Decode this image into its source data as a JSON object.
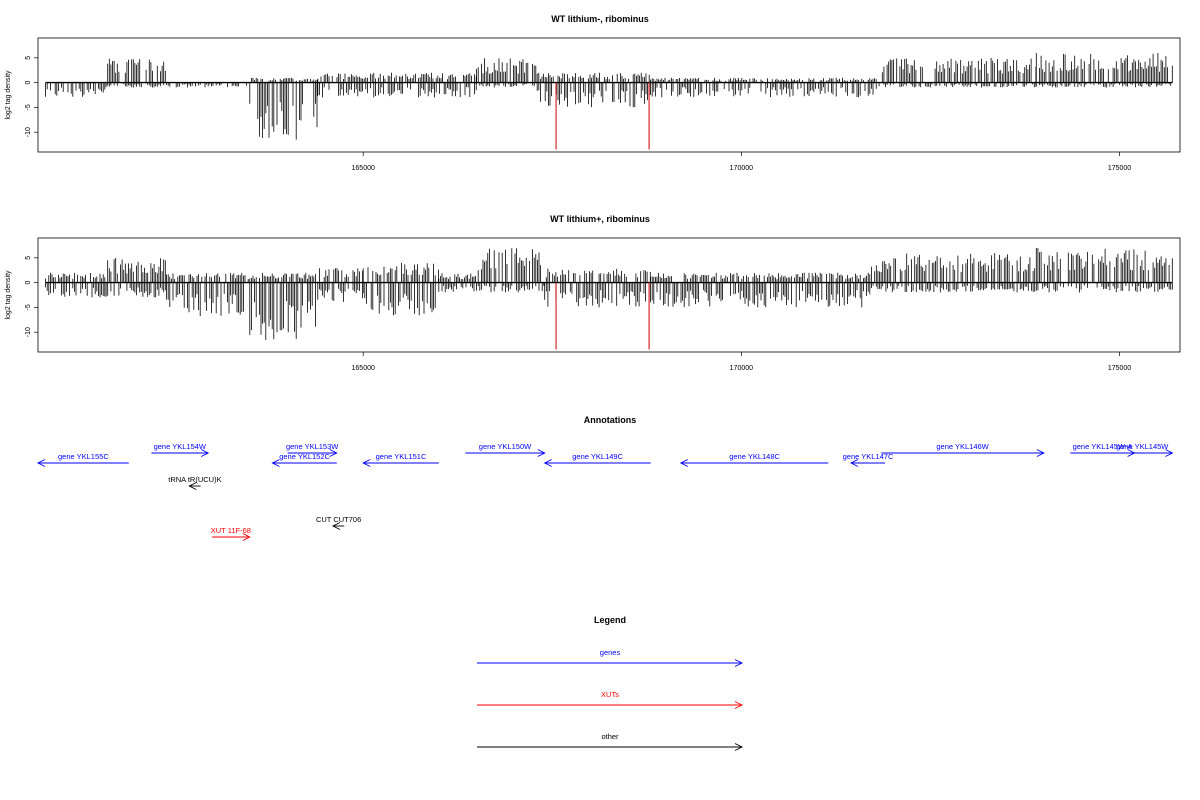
{
  "chart_data": [
    {
      "type": "bar",
      "title": "WT lithium-, ribominus",
      "ylabel": "log2 tag density",
      "xlabel": "",
      "xlim": [
        160700,
        175800
      ],
      "ylim": [
        -14,
        9
      ],
      "x_ticks": [
        165000,
        170000,
        175000
      ],
      "y_ticks": [
        5,
        0,
        -5,
        -10
      ],
      "segments": [
        {
          "from": 160800,
          "to": 161600,
          "pos": 0,
          "neg": 3
        },
        {
          "from": 161600,
          "to": 162400,
          "pos": 5,
          "neg": 1
        },
        {
          "from": 162400,
          "to": 163500,
          "pos": 0,
          "neg": 1
        },
        {
          "from": 163500,
          "to": 164400,
          "pos": 1,
          "neg": 12
        },
        {
          "from": 164400,
          "to": 166500,
          "pos": 2,
          "neg": 3
        },
        {
          "from": 166500,
          "to": 167300,
          "pos": 5,
          "neg": 1
        },
        {
          "from": 167300,
          "to": 168800,
          "pos": 2,
          "neg": 5
        },
        {
          "from": 168800,
          "to": 171800,
          "pos": 1,
          "neg": 3
        },
        {
          "from": 171800,
          "to": 173900,
          "pos": 5,
          "neg": 1
        },
        {
          "from": 173900,
          "to": 175700,
          "pos": 6,
          "neg": 1
        }
      ],
      "markers": [
        {
          "x": 167550,
          "y": -13.5
        },
        {
          "x": 168780,
          "y": -13.5
        }
      ],
      "marker_color": "#cc0000"
    },
    {
      "type": "bar",
      "title": "WT lithium+, ribominus",
      "ylabel": "log2 tag density",
      "xlabel": "",
      "xlim": [
        160700,
        175800
      ],
      "ylim": [
        -14,
        9
      ],
      "x_ticks": [
        165000,
        170000,
        175000
      ],
      "y_ticks": [
        5,
        0,
        -5,
        -10
      ],
      "segments": [
        {
          "from": 160800,
          "to": 161600,
          "pos": 2,
          "neg": 3
        },
        {
          "from": 161600,
          "to": 162400,
          "pos": 5,
          "neg": 3
        },
        {
          "from": 162400,
          "to": 163500,
          "pos": 2,
          "neg": 7
        },
        {
          "from": 163500,
          "to": 164400,
          "pos": 2,
          "neg": 12
        },
        {
          "from": 164400,
          "to": 165000,
          "pos": 3,
          "neg": 4
        },
        {
          "from": 165000,
          "to": 166000,
          "pos": 4,
          "neg": 7
        },
        {
          "from": 166000,
          "to": 166500,
          "pos": 2,
          "neg": 2
        },
        {
          "from": 166500,
          "to": 167400,
          "pos": 7,
          "neg": 2
        },
        {
          "from": 167400,
          "to": 168800,
          "pos": 3,
          "neg": 5
        },
        {
          "from": 168800,
          "to": 171700,
          "pos": 2,
          "neg": 5
        },
        {
          "from": 171700,
          "to": 173900,
          "pos": 6,
          "neg": 2
        },
        {
          "from": 173900,
          "to": 175700,
          "pos": 7,
          "neg": 2
        }
      ],
      "markers": [
        {
          "x": 167550,
          "y": -13.5
        },
        {
          "x": 168780,
          "y": -13.5
        }
      ],
      "marker_color": "#cc0000"
    }
  ],
  "annotations": {
    "title": "Annotations",
    "xlim": [
      160700,
      175800
    ],
    "features": [
      {
        "label": "gene YKL155C",
        "start": 160700,
        "end": 161900,
        "dir": "left",
        "color": "#0000ff",
        "row": 1
      },
      {
        "label": "gene YKL154W",
        "start": 162200,
        "end": 162950,
        "dir": "right",
        "color": "#0000ff",
        "row": 0
      },
      {
        "label": "gene YKL153W",
        "start": 164000,
        "end": 164650,
        "dir": "right",
        "color": "#0000ff",
        "row": 0
      },
      {
        "label": "gene YKL152C",
        "start": 163800,
        "end": 164650,
        "dir": "left",
        "color": "#0000ff",
        "row": 1
      },
      {
        "label": "gene YKL151C",
        "start": 165000,
        "end": 166000,
        "dir": "left",
        "color": "#0000ff",
        "row": 1
      },
      {
        "label": "gene YKL150W",
        "start": 166350,
        "end": 167400,
        "dir": "right",
        "color": "#0000ff",
        "row": 0
      },
      {
        "label": "gene YKL149C",
        "start": 167400,
        "end": 168800,
        "dir": "left",
        "color": "#0000ff",
        "row": 1
      },
      {
        "label": "gene YKL148C",
        "start": 169200,
        "end": 171150,
        "dir": "left",
        "color": "#0000ff",
        "row": 1
      },
      {
        "label": "gene YKL147C",
        "start": 171450,
        "end": 171900,
        "dir": "left",
        "color": "#0000ff",
        "row": 1
      },
      {
        "label": "gene YKL146W",
        "start": 171850,
        "end": 174000,
        "dir": "right",
        "color": "#0000ff",
        "row": 0
      },
      {
        "label": "gene YKL145W-A",
        "start": 174350,
        "end": 175200,
        "dir": "right",
        "color": "#0000ff",
        "row": 0
      },
      {
        "label": "gene YKL145W",
        "start": 174900,
        "end": 175700,
        "dir": "right",
        "color": "#0000ff",
        "row": 0
      },
      {
        "label": "tRNA tR(UCU)K",
        "start": 162700,
        "end": 162850,
        "dir": "left",
        "color": "#000000",
        "row": 2
      },
      {
        "label": "CUT CUT706",
        "start": 164600,
        "end": 164750,
        "dir": "left",
        "color": "#000000",
        "row": 3
      },
      {
        "label": "XUT 11F-68",
        "start": 163000,
        "end": 163500,
        "dir": "right",
        "color": "#ff0000",
        "row": 4
      }
    ]
  },
  "legend": {
    "title": "Legend",
    "items": [
      {
        "label": "genes",
        "color": "#0000ff"
      },
      {
        "label": "XUTs",
        "color": "#ff0000"
      },
      {
        "label": "other",
        "color": "#000000"
      }
    ]
  }
}
